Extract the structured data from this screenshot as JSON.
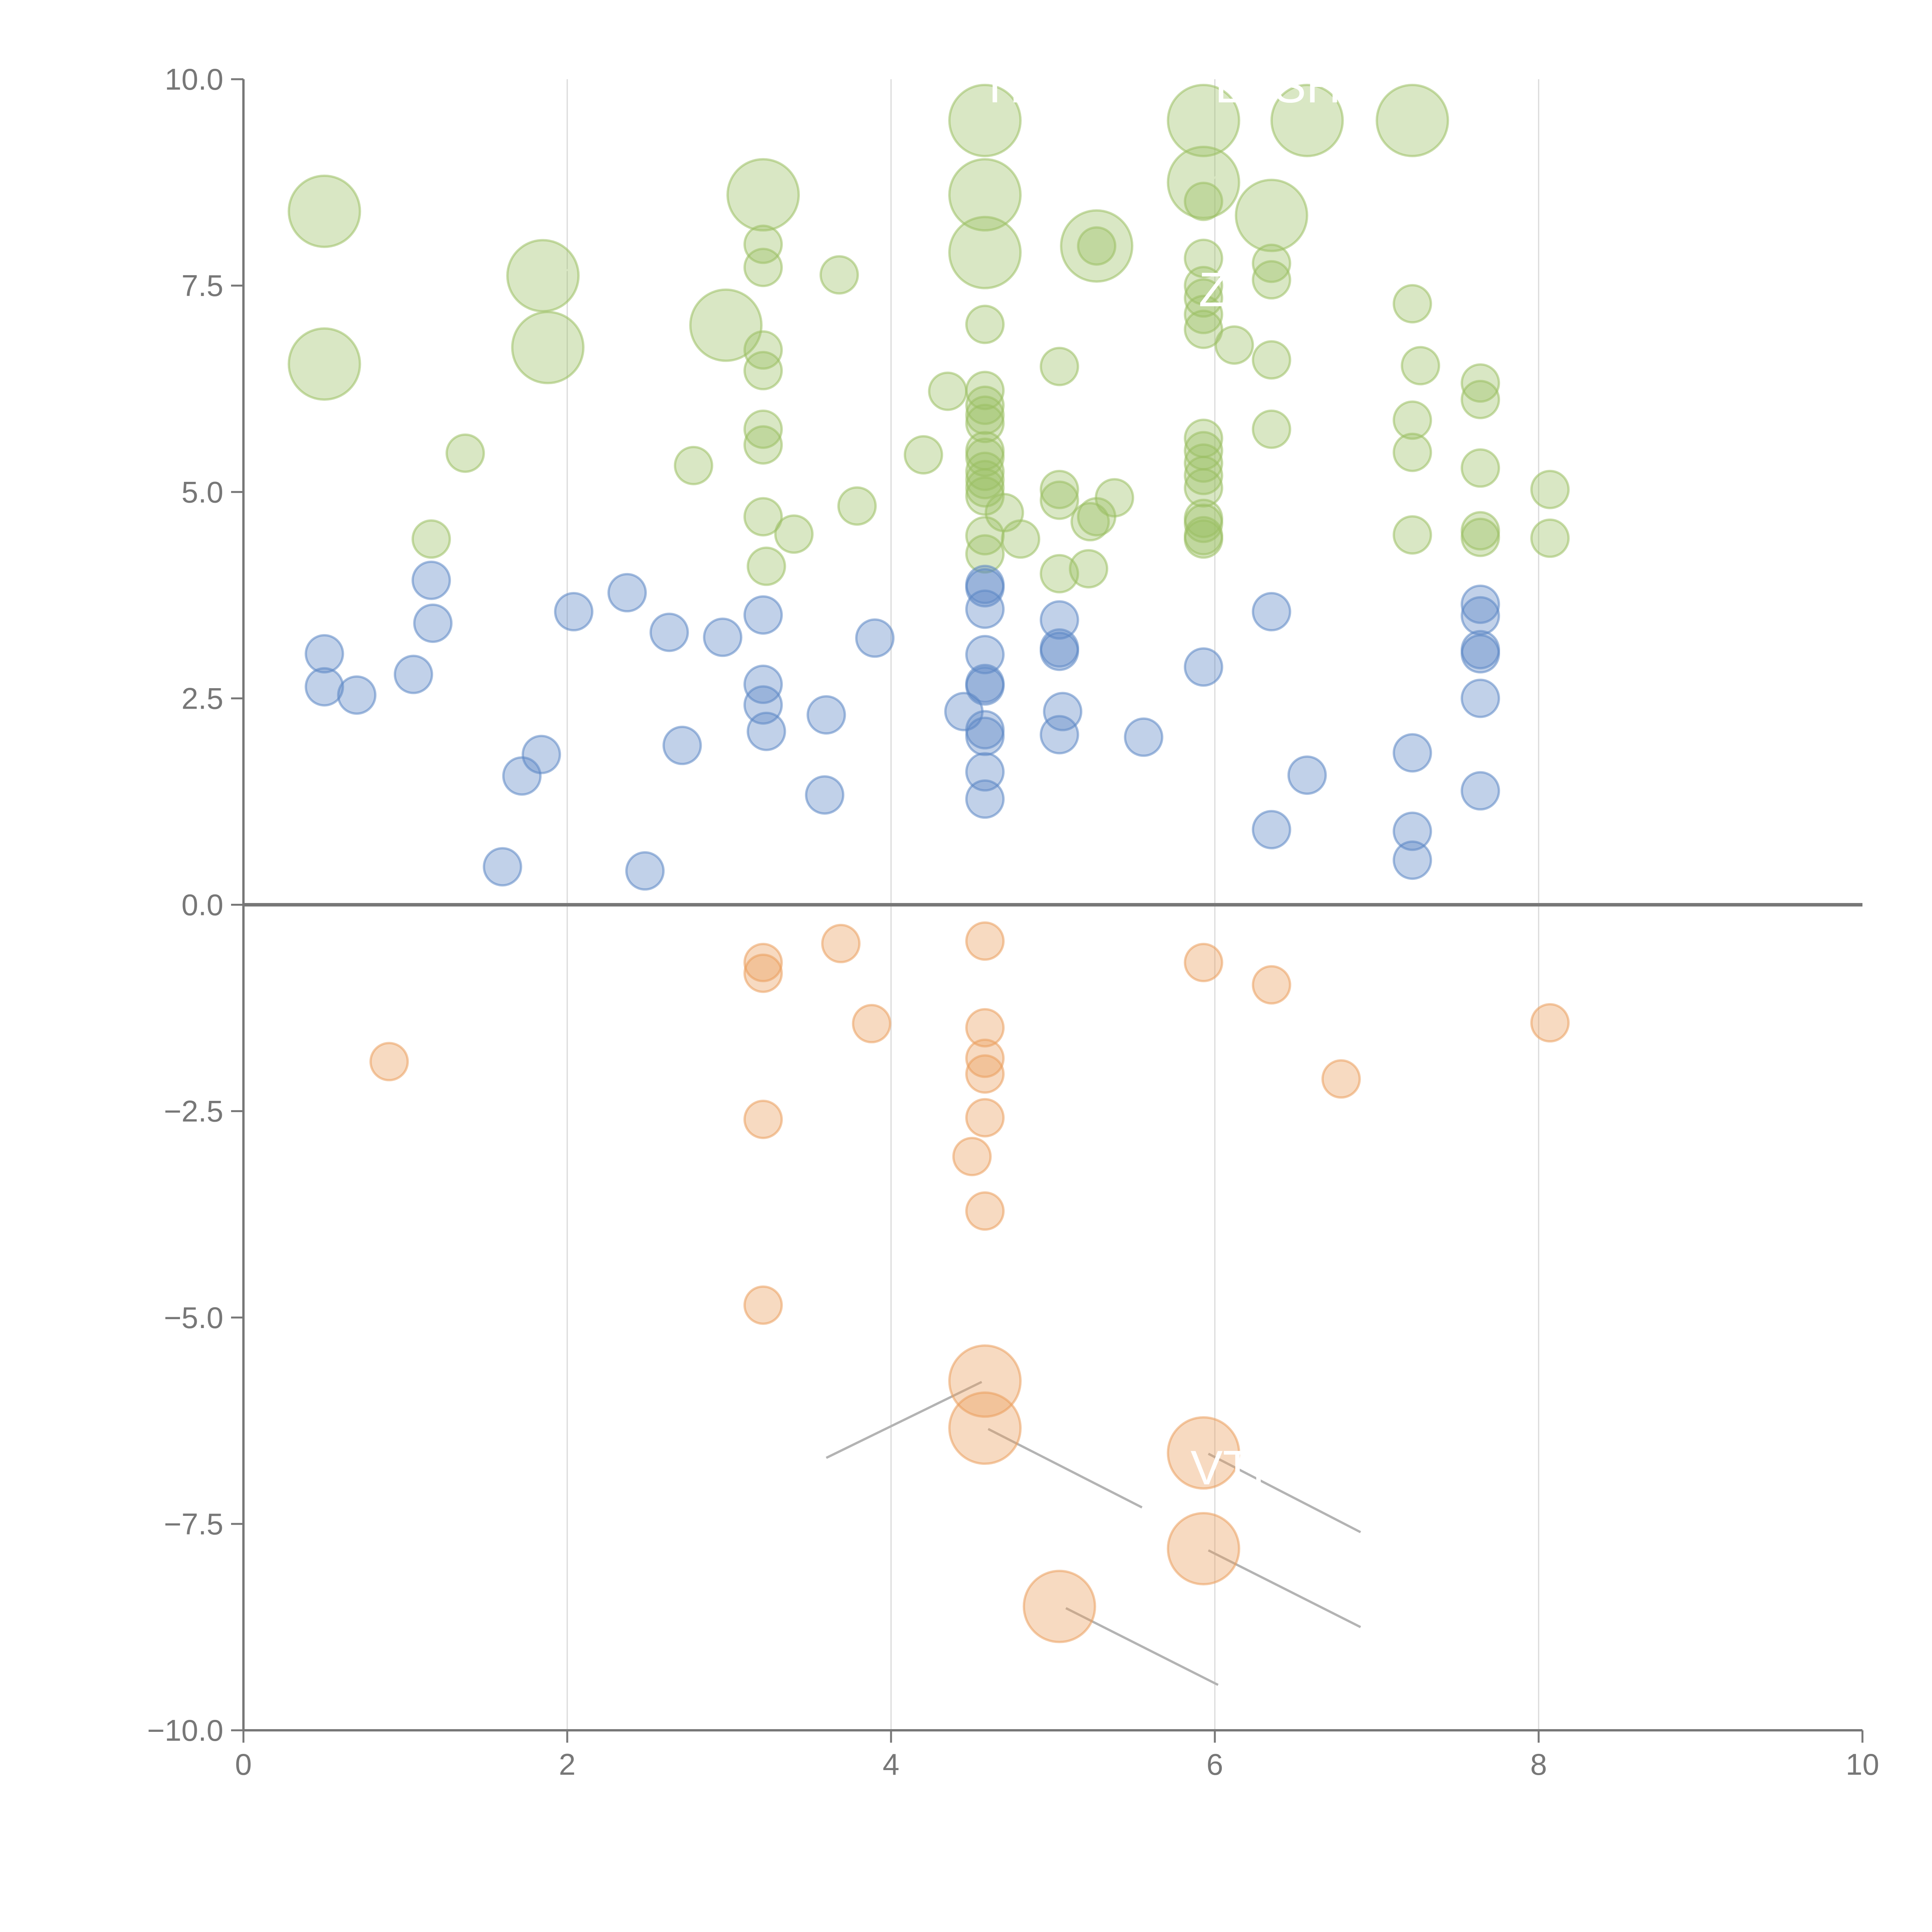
{
  "chart_data": {
    "type": "scatter",
    "xlim": [
      0,
      10
    ],
    "ylim": [
      -10,
      10
    ],
    "x_ticks": [
      "0",
      "2",
      "4",
      "6",
      "8",
      "10"
    ],
    "y_ticks": [
      "10.0",
      "7.5",
      "5.0",
      "2.5",
      "0.0",
      "−2.5",
      "−5.0",
      "−7.5",
      "−10.0"
    ],
    "grid": "vertical",
    "zero_line": true,
    "legend": "none",
    "colors": {
      "green": "#9bc063",
      "blue": "#5b86c5",
      "orange": "#eb9f5c"
    },
    "series": [
      {
        "color": "green",
        "points": [
          {
            "x": 0.5,
            "y": 8.4,
            "size": 2
          },
          {
            "x": 0.5,
            "y": 6.55,
            "size": 2
          },
          {
            "x": 1.85,
            "y": 7.62,
            "size": 2
          },
          {
            "x": 1.88,
            "y": 6.75,
            "size": 2
          },
          {
            "x": 2.98,
            "y": 7.02,
            "size": 2
          },
          {
            "x": 3.21,
            "y": 8.6,
            "size": 2
          },
          {
            "x": 4.58,
            "y": 9.5,
            "size": 2
          },
          {
            "x": 4.58,
            "y": 8.6,
            "size": 2
          },
          {
            "x": 4.58,
            "y": 7.9,
            "size": 2
          },
          {
            "x": 5.27,
            "y": 7.98,
            "size": 2
          },
          {
            "x": 5.93,
            "y": 9.5,
            "size": 2
          },
          {
            "x": 5.93,
            "y": 8.75,
            "size": 2
          },
          {
            "x": 6.35,
            "y": 8.35,
            "size": 2
          },
          {
            "x": 6.57,
            "y": 9.5,
            "size": 2
          },
          {
            "x": 7.22,
            "y": 9.5,
            "size": 2
          },
          {
            "x": 1.16,
            "y": 4.43,
            "size": 1
          },
          {
            "x": 1.37,
            "y": 5.47,
            "size": 1
          },
          {
            "x": 2.78,
            "y": 5.32,
            "size": 1
          },
          {
            "x": 3.21,
            "y": 8.0,
            "size": 1
          },
          {
            "x": 3.21,
            "y": 7.72,
            "size": 1
          },
          {
            "x": 3.21,
            "y": 6.72,
            "size": 1
          },
          {
            "x": 3.21,
            "y": 6.47,
            "size": 1
          },
          {
            "x": 3.21,
            "y": 5.76,
            "size": 1
          },
          {
            "x": 3.21,
            "y": 5.57,
            "size": 1
          },
          {
            "x": 3.21,
            "y": 4.7,
            "size": 1
          },
          {
            "x": 3.23,
            "y": 4.1,
            "size": 1
          },
          {
            "x": 3.4,
            "y": 4.49,
            "size": 1
          },
          {
            "x": 3.68,
            "y": 7.63,
            "size": 1
          },
          {
            "x": 3.79,
            "y": 4.83,
            "size": 1
          },
          {
            "x": 4.2,
            "y": 5.45,
            "size": 1
          },
          {
            "x": 4.35,
            "y": 6.22,
            "size": 1
          },
          {
            "x": 4.58,
            "y": 7.03,
            "size": 1
          },
          {
            "x": 4.58,
            "y": 6.23,
            "size": 1
          },
          {
            "x": 4.58,
            "y": 6.05,
            "size": 1
          },
          {
            "x": 4.58,
            "y": 5.93,
            "size": 1
          },
          {
            "x": 4.58,
            "y": 5.83,
            "size": 1
          },
          {
            "x": 4.58,
            "y": 5.5,
            "size": 1
          },
          {
            "x": 4.58,
            "y": 5.42,
            "size": 1
          },
          {
            "x": 4.58,
            "y": 5.25,
            "size": 1
          },
          {
            "x": 4.58,
            "y": 5.15,
            "size": 1
          },
          {
            "x": 4.58,
            "y": 5.05,
            "size": 1
          },
          {
            "x": 4.58,
            "y": 4.95,
            "size": 1
          },
          {
            "x": 4.58,
            "y": 4.47,
            "size": 1
          },
          {
            "x": 4.58,
            "y": 4.25,
            "size": 1
          },
          {
            "x": 4.7,
            "y": 4.75,
            "size": 1
          },
          {
            "x": 4.8,
            "y": 4.43,
            "size": 1
          },
          {
            "x": 5.04,
            "y": 6.52,
            "size": 1
          },
          {
            "x": 5.04,
            "y": 5.03,
            "size": 1
          },
          {
            "x": 5.04,
            "y": 4.9,
            "size": 1
          },
          {
            "x": 5.04,
            "y": 4.01,
            "size": 1
          },
          {
            "x": 5.22,
            "y": 4.07,
            "size": 1
          },
          {
            "x": 5.23,
            "y": 4.64,
            "size": 1
          },
          {
            "x": 5.27,
            "y": 4.7,
            "size": 1
          },
          {
            "x": 5.38,
            "y": 4.93,
            "size": 1
          },
          {
            "x": 5.27,
            "y": 7.98,
            "size": 1
          },
          {
            "x": 5.93,
            "y": 8.52,
            "size": 1
          },
          {
            "x": 5.93,
            "y": 7.83,
            "size": 1
          },
          {
            "x": 5.93,
            "y": 7.5,
            "size": 1
          },
          {
            "x": 5.93,
            "y": 7.35,
            "size": 1
          },
          {
            "x": 5.93,
            "y": 7.15,
            "size": 1
          },
          {
            "x": 5.93,
            "y": 6.97,
            "size": 1
          },
          {
            "x": 5.93,
            "y": 5.65,
            "size": 1
          },
          {
            "x": 5.93,
            "y": 5.5,
            "size": 1
          },
          {
            "x": 5.93,
            "y": 5.35,
            "size": 1
          },
          {
            "x": 5.93,
            "y": 5.2,
            "size": 1
          },
          {
            "x": 5.93,
            "y": 5.05,
            "size": 1
          },
          {
            "x": 5.93,
            "y": 4.68,
            "size": 1
          },
          {
            "x": 5.93,
            "y": 4.62,
            "size": 1
          },
          {
            "x": 5.93,
            "y": 4.47,
            "size": 1
          },
          {
            "x": 5.93,
            "y": 4.43,
            "size": 1
          },
          {
            "x": 6.12,
            "y": 6.78,
            "size": 1
          },
          {
            "x": 6.35,
            "y": 7.77,
            "size": 1
          },
          {
            "x": 6.35,
            "y": 7.57,
            "size": 1
          },
          {
            "x": 6.35,
            "y": 6.6,
            "size": 1
          },
          {
            "x": 6.35,
            "y": 5.76,
            "size": 1
          },
          {
            "x": 7.22,
            "y": 7.28,
            "size": 1
          },
          {
            "x": 7.22,
            "y": 5.87,
            "size": 1
          },
          {
            "x": 7.22,
            "y": 5.48,
            "size": 1
          },
          {
            "x": 7.22,
            "y": 4.48,
            "size": 1
          },
          {
            "x": 7.27,
            "y": 6.53,
            "size": 1
          },
          {
            "x": 7.64,
            "y": 6.32,
            "size": 1
          },
          {
            "x": 7.64,
            "y": 6.12,
            "size": 1
          },
          {
            "x": 7.64,
            "y": 5.29,
            "size": 1
          },
          {
            "x": 7.64,
            "y": 4.53,
            "size": 1
          },
          {
            "x": 7.64,
            "y": 4.45,
            "size": 1
          },
          {
            "x": 8.07,
            "y": 5.03,
            "size": 1
          },
          {
            "x": 8.07,
            "y": 4.44,
            "size": 1
          }
        ]
      },
      {
        "color": "blue",
        "points": [
          {
            "x": 0.5,
            "y": 3.04,
            "size": 1
          },
          {
            "x": 0.5,
            "y": 2.64,
            "size": 1
          },
          {
            "x": 0.7,
            "y": 2.54,
            "size": 1
          },
          {
            "x": 1.05,
            "y": 2.79,
            "size": 1
          },
          {
            "x": 1.16,
            "y": 3.93,
            "size": 1
          },
          {
            "x": 1.17,
            "y": 3.41,
            "size": 1
          },
          {
            "x": 1.6,
            "y": 0.46,
            "size": 1
          },
          {
            "x": 1.72,
            "y": 1.56,
            "size": 1
          },
          {
            "x": 1.84,
            "y": 1.82,
            "size": 1
          },
          {
            "x": 2.04,
            "y": 3.55,
            "size": 1
          },
          {
            "x": 2.37,
            "y": 3.78,
            "size": 1
          },
          {
            "x": 2.48,
            "y": 0.41,
            "size": 1
          },
          {
            "x": 2.63,
            "y": 3.3,
            "size": 1
          },
          {
            "x": 2.71,
            "y": 1.93,
            "size": 1
          },
          {
            "x": 2.96,
            "y": 3.24,
            "size": 1
          },
          {
            "x": 3.21,
            "y": 3.51,
            "size": 1
          },
          {
            "x": 3.21,
            "y": 2.67,
            "size": 1
          },
          {
            "x": 3.21,
            "y": 2.42,
            "size": 1
          },
          {
            "x": 3.23,
            "y": 2.1,
            "size": 1
          },
          {
            "x": 3.59,
            "y": 1.33,
            "size": 1
          },
          {
            "x": 3.6,
            "y": 2.3,
            "size": 1
          },
          {
            "x": 3.9,
            "y": 3.23,
            "size": 1
          },
          {
            "x": 4.45,
            "y": 2.34,
            "size": 1
          },
          {
            "x": 4.58,
            "y": 3.88,
            "size": 1
          },
          {
            "x": 4.58,
            "y": 3.84,
            "size": 1
          },
          {
            "x": 4.58,
            "y": 3.58,
            "size": 1
          },
          {
            "x": 4.58,
            "y": 3.03,
            "size": 1
          },
          {
            "x": 4.58,
            "y": 2.68,
            "size": 1
          },
          {
            "x": 4.58,
            "y": 2.65,
            "size": 1
          },
          {
            "x": 4.58,
            "y": 2.12,
            "size": 1
          },
          {
            "x": 4.58,
            "y": 2.04,
            "size": 1
          },
          {
            "x": 4.58,
            "y": 1.61,
            "size": 1
          },
          {
            "x": 4.58,
            "y": 1.28,
            "size": 1
          },
          {
            "x": 5.04,
            "y": 3.45,
            "size": 1
          },
          {
            "x": 5.04,
            "y": 3.11,
            "size": 1
          },
          {
            "x": 5.04,
            "y": 3.07,
            "size": 1
          },
          {
            "x": 5.04,
            "y": 2.06,
            "size": 1
          },
          {
            "x": 5.06,
            "y": 2.34,
            "size": 1
          },
          {
            "x": 5.56,
            "y": 2.03,
            "size": 1
          },
          {
            "x": 5.93,
            "y": 2.88,
            "size": 1
          },
          {
            "x": 6.35,
            "y": 3.55,
            "size": 1
          },
          {
            "x": 6.35,
            "y": 0.91,
            "size": 1
          },
          {
            "x": 6.57,
            "y": 1.57,
            "size": 1
          },
          {
            "x": 7.22,
            "y": 1.84,
            "size": 1
          },
          {
            "x": 7.22,
            "y": 0.89,
            "size": 1
          },
          {
            "x": 7.22,
            "y": 0.54,
            "size": 1
          },
          {
            "x": 7.64,
            "y": 3.64,
            "size": 1
          },
          {
            "x": 7.64,
            "y": 3.5,
            "size": 1
          },
          {
            "x": 7.64,
            "y": 3.09,
            "size": 1
          },
          {
            "x": 7.64,
            "y": 3.04,
            "size": 1
          },
          {
            "x": 7.64,
            "y": 2.5,
            "size": 1
          },
          {
            "x": 7.64,
            "y": 1.38,
            "size": 1
          }
        ]
      },
      {
        "color": "orange",
        "points": [
          {
            "x": 0.9,
            "y": -1.9,
            "size": 1
          },
          {
            "x": 3.21,
            "y": -0.7,
            "size": 1
          },
          {
            "x": 3.21,
            "y": -0.83,
            "size": 1
          },
          {
            "x": 3.21,
            "y": -2.6,
            "size": 1
          },
          {
            "x": 3.21,
            "y": -4.85,
            "size": 1
          },
          {
            "x": 3.69,
            "y": -0.47,
            "size": 1
          },
          {
            "x": 3.88,
            "y": -1.44,
            "size": 1
          },
          {
            "x": 4.5,
            "y": -3.05,
            "size": 1
          },
          {
            "x": 4.58,
            "y": -0.44,
            "size": 1
          },
          {
            "x": 4.58,
            "y": -1.49,
            "size": 1
          },
          {
            "x": 4.58,
            "y": -1.86,
            "size": 1
          },
          {
            "x": 4.58,
            "y": -2.05,
            "size": 1
          },
          {
            "x": 4.58,
            "y": -2.58,
            "size": 1
          },
          {
            "x": 4.58,
            "y": -3.71,
            "size": 1
          },
          {
            "x": 5.93,
            "y": -0.7,
            "size": 1
          },
          {
            "x": 6.35,
            "y": -0.97,
            "size": 1
          },
          {
            "x": 6.78,
            "y": -2.11,
            "size": 1
          },
          {
            "x": 8.07,
            "y": -1.43,
            "size": 1
          },
          {
            "x": 4.58,
            "y": -5.77,
            "size": 2
          },
          {
            "x": 4.58,
            "y": -6.34,
            "size": 2
          },
          {
            "x": 5.04,
            "y": -8.5,
            "size": 2
          },
          {
            "x": 5.93,
            "y": -6.64,
            "size": 2
          },
          {
            "x": 5.93,
            "y": -7.8,
            "size": 2
          }
        ]
      }
    ],
    "leader_lines": [
      {
        "from": [
          4.56,
          -5.78
        ],
        "to": [
          3.6,
          -6.7
        ],
        "style": "grey"
      },
      {
        "from": [
          4.6,
          -6.35
        ],
        "to": [
          5.55,
          -7.3
        ],
        "style": "grey"
      },
      {
        "from": [
          5.96,
          -6.65
        ],
        "to": [
          6.9,
          -7.6
        ],
        "style": "grey"
      },
      {
        "from": [
          5.96,
          -7.82
        ],
        "to": [
          6.9,
          -8.75
        ],
        "style": "grey"
      },
      {
        "from": [
          5.08,
          -8.52
        ],
        "to": [
          6.02,
          -9.45
        ],
        "style": "grey"
      },
      {
        "from": [
          0.52,
          6.52
        ],
        "to": [
          0.68,
          6.3
        ],
        "style": "white"
      },
      {
        "from": [
          1.85,
          7.65
        ],
        "to": [
          2.05,
          7.7
        ],
        "style": "white"
      },
      {
        "from": [
          1.87,
          6.75
        ],
        "to": [
          1.84,
          6.4
        ],
        "style": "white"
      },
      {
        "from": [
          2.98,
          7.02
        ],
        "to": [
          2.96,
          6.6
        ],
        "style": "white"
      },
      {
        "from": [
          3.2,
          8.62
        ],
        "to": [
          3.0,
          8.7
        ],
        "style": "white"
      },
      {
        "from": [
          4.56,
          9.48
        ],
        "to": [
          4.2,
          9.52
        ],
        "style": "white"
      },
      {
        "from": [
          4.56,
          8.62
        ],
        "to": [
          4.35,
          8.72
        ],
        "style": "white"
      },
      {
        "from": [
          4.56,
          7.9
        ],
        "to": [
          4.3,
          7.6
        ],
        "style": "white"
      },
      {
        "from": [
          5.27,
          7.95
        ],
        "to": [
          5.4,
          7.6
        ],
        "style": "white"
      },
      {
        "from": [
          5.9,
          9.5
        ],
        "to": [
          5.6,
          9.55
        ],
        "style": "white"
      },
      {
        "from": [
          5.96,
          8.75
        ],
        "to": [
          6.2,
          9.1
        ],
        "style": "white"
      },
      {
        "from": [
          6.38,
          8.35
        ],
        "to": [
          6.6,
          8.1
        ],
        "style": "white"
      },
      {
        "from": [
          7.25,
          9.52
        ],
        "to": [
          7.7,
          9.6
        ],
        "style": "white"
      }
    ],
    "overlay_texts": [
      {
        "text": "TH",
        "x": 4.55,
        "y": 9.72
      },
      {
        "text": "LASH",
        "x": 6.0,
        "y": 9.72
      },
      {
        "text": "ZL",
        "x": 5.9,
        "y": 7.25
      },
      {
        "text": "VTH",
        "x": 5.85,
        "y": -7.02
      }
    ]
  }
}
